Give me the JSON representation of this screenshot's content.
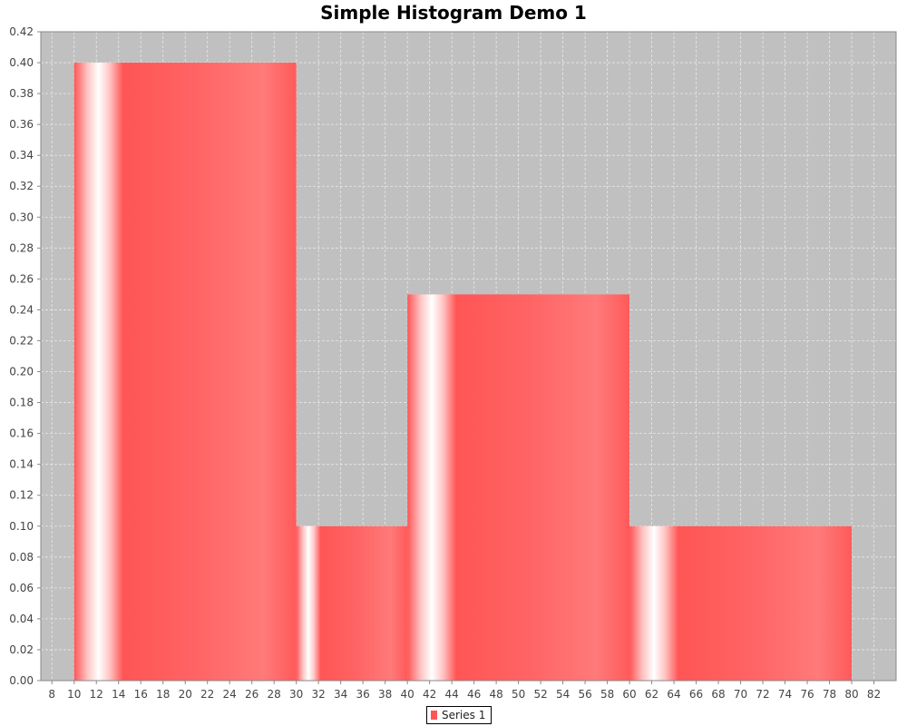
{
  "chart_data": {
    "type": "bar",
    "title": "Simple Histogram Demo 1",
    "xlabel": "",
    "ylabel": "",
    "xlim": [
      7,
      84
    ],
    "ylim": [
      0,
      0.42
    ],
    "x_ticks": [
      8,
      10,
      12,
      14,
      16,
      18,
      20,
      22,
      24,
      26,
      28,
      30,
      32,
      34,
      36,
      38,
      40,
      42,
      44,
      46,
      48,
      50,
      52,
      54,
      56,
      58,
      60,
      62,
      64,
      66,
      68,
      70,
      72,
      74,
      76,
      78,
      80,
      82
    ],
    "y_ticks": [
      0.0,
      0.02,
      0.04,
      0.06,
      0.08,
      0.1,
      0.12,
      0.14,
      0.16,
      0.18,
      0.2,
      0.22,
      0.24,
      0.26,
      0.28,
      0.3,
      0.32,
      0.34,
      0.36,
      0.38,
      0.4,
      0.42
    ],
    "grid": true,
    "legend_position": "bottom-center",
    "series": [
      {
        "name": "Series 1",
        "color": "#ff5555",
        "bins": [
          {
            "start": 10,
            "end": 30,
            "value": 0.4
          },
          {
            "start": 30,
            "end": 40,
            "value": 0.1
          },
          {
            "start": 40,
            "end": 60,
            "value": 0.25
          },
          {
            "start": 60,
            "end": 80,
            "value": 0.1
          }
        ]
      }
    ],
    "plot_background": "#c0c0c0"
  }
}
